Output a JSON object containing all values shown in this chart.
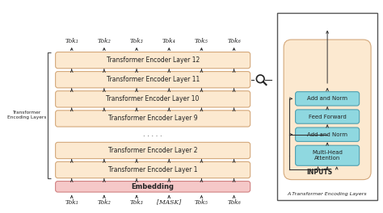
{
  "bg_color": "#ffffff",
  "left_panel": {
    "layer_color": "#fce9d0",
    "layer_edge_color": "#d4a87a",
    "embedding_color": "#f5c8c8",
    "embedding_edge_color": "#d08080",
    "embedding_label": "Embedding",
    "top_tokens": [
      "Tok₁",
      "Tok₂",
      "Tok₃",
      "Tok₄",
      "Tok₅",
      "Tok₆"
    ],
    "bot_tokens": [
      "Tok₁",
      "Tok₂",
      "Tok₃",
      "[MASK]",
      "Tok₅",
      "Tok₆"
    ],
    "bracket_label": "Transformer\nEncoding Layers",
    "layer_names": [
      "Transformer Encoder Layer 12",
      "Transformer Encoder Layer 11",
      "Transformer Encoder Layer 10",
      "Transformer Encoder Layer 9",
      "Transformer Encoder Layer 2",
      "Transformer Encoder Layer 1"
    ]
  },
  "right_panel": {
    "outer_edge": "#555555",
    "inner_bg_color": "#fce9d0",
    "inner_bg_edge": "#d4a87a",
    "block_color": "#8fd8e0",
    "block_edge": "#50a0b0",
    "blocks_bottom_to_top": [
      "Multi-Head\nAttention",
      "Add and Norm",
      "Feed Forward",
      "Add and Norm"
    ],
    "inputs_label": "INPUTS",
    "caption": "A Transformer Encoding Layers"
  },
  "text_color": "#222222",
  "arrow_color": "#333333"
}
